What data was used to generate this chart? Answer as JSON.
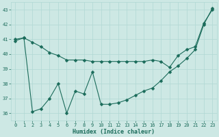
{
  "xlabel": "Humidex (Indice chaleur)",
  "background_color": "#cde8e4",
  "grid_color": "#b0d8d4",
  "line_color": "#1a6b5a",
  "xlim": [
    -0.5,
    23.5
  ],
  "ylim": [
    35.5,
    43.5
  ],
  "yticks": [
    36,
    37,
    38,
    39,
    40,
    41,
    42,
    43
  ],
  "xticks": [
    0,
    1,
    2,
    3,
    4,
    5,
    6,
    7,
    8,
    9,
    10,
    11,
    12,
    13,
    14,
    15,
    16,
    17,
    18,
    19,
    20,
    21,
    22,
    23
  ],
  "line1_x": [
    0,
    1,
    2,
    3,
    4,
    5,
    6,
    7,
    8,
    9,
    10,
    11,
    12,
    13,
    14,
    15,
    16,
    17,
    18,
    19,
    20,
    21,
    22,
    23
  ],
  "line1_y": [
    41.0,
    41.1,
    40.8,
    40.5,
    40.1,
    39.9,
    39.6,
    39.6,
    39.6,
    39.5,
    39.5,
    39.5,
    39.5,
    39.5,
    39.5,
    39.5,
    39.6,
    39.5,
    39.1,
    39.9,
    40.3,
    40.5,
    42.1,
    43.0
  ],
  "line2_x": [
    0,
    1,
    2,
    3,
    4,
    5,
    6,
    7,
    8,
    9,
    10,
    11,
    12,
    13,
    14,
    15,
    16,
    17,
    18,
    19,
    20,
    21,
    22,
    23
  ],
  "line2_y": [
    40.9,
    41.1,
    36.1,
    36.3,
    37.0,
    38.0,
    36.0,
    37.5,
    37.3,
    38.8,
    36.6,
    36.6,
    36.7,
    36.9,
    37.2,
    37.5,
    37.7,
    38.2,
    38.8,
    39.2,
    39.7,
    40.3,
    42.0,
    43.1
  ]
}
